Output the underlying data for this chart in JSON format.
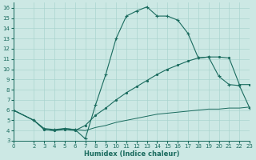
{
  "background_color": "#cce8e4",
  "line_color": "#1a6b5e",
  "grid_color": "#aad4cf",
  "xlabel": "Humidex (Indice chaleur)",
  "ylim": [
    3,
    16.5
  ],
  "xlim": [
    0,
    23
  ],
  "yticks": [
    3,
    4,
    5,
    6,
    7,
    8,
    9,
    10,
    11,
    12,
    13,
    14,
    15,
    16
  ],
  "xticks": [
    0,
    2,
    3,
    4,
    5,
    6,
    7,
    8,
    9,
    10,
    11,
    12,
    13,
    14,
    15,
    16,
    17,
    18,
    19,
    20,
    21,
    22,
    23
  ],
  "line1_x": [
    0,
    2,
    3,
    4,
    5,
    6,
    7,
    8,
    9,
    10,
    11,
    12,
    13,
    14,
    15,
    16,
    17,
    18,
    19,
    20,
    21,
    22,
    23
  ],
  "line1_y": [
    6,
    5,
    4.2,
    4.1,
    4.2,
    4.1,
    3.2,
    6.5,
    9.5,
    13.0,
    15.2,
    15.7,
    16.1,
    15.2,
    15.2,
    14.8,
    13.5,
    11.1,
    11.2,
    9.3,
    8.5,
    8.4,
    6.2
  ],
  "line2_x": [
    0,
    2,
    3,
    4,
    5,
    6,
    7,
    8,
    9,
    10,
    11,
    12,
    13,
    14,
    15,
    16,
    17,
    18,
    19,
    20,
    21,
    22,
    23
  ],
  "line2_y": [
    6.0,
    5.0,
    4.1,
    4.0,
    4.1,
    4.0,
    4.5,
    5.5,
    6.2,
    7.0,
    7.7,
    8.3,
    8.9,
    9.5,
    10.0,
    10.4,
    10.8,
    11.1,
    11.2,
    11.2,
    11.1,
    8.5,
    8.5
  ],
  "line3_x": [
    0,
    2,
    3,
    4,
    5,
    6,
    7,
    8,
    9,
    10,
    11,
    12,
    13,
    14,
    15,
    16,
    17,
    18,
    19,
    20,
    21,
    22,
    23
  ],
  "line3_y": [
    6.0,
    5.0,
    4.1,
    4.0,
    4.2,
    4.1,
    4.0,
    4.3,
    4.5,
    4.8,
    5.0,
    5.2,
    5.4,
    5.6,
    5.7,
    5.8,
    5.9,
    6.0,
    6.1,
    6.1,
    6.2,
    6.2,
    6.3
  ]
}
